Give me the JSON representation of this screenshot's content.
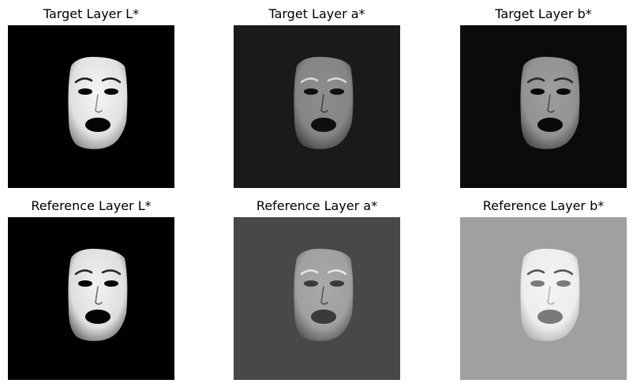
{
  "panels": [
    {
      "title": "Target Layer L*",
      "background": "#000000",
      "face": {
        "skin_light": "#f5f5f5",
        "skin_dark": "#8c8c8c",
        "feature": "#050505",
        "brow": "#1e1e1e"
      }
    },
    {
      "title": "Target Layer a*",
      "background": "#1a1a1a",
      "face": {
        "skin_light": "#8e8e8e",
        "skin_dark": "#454545",
        "feature": "#0f0f0f",
        "brow": "#d8d8d8"
      }
    },
    {
      "title": "Target Layer b*",
      "background": "#0b0b0b",
      "face": {
        "skin_light": "#9e9e9e",
        "skin_dark": "#4c4c4c",
        "feature": "#0a0a0a",
        "brow": "#2a2a2a"
      }
    },
    {
      "title": "Reference Layer L*",
      "background": "#000000",
      "face": {
        "skin_light": "#f2f2f2",
        "skin_dark": "#6e6e6e",
        "feature": "#030303",
        "brow": "#2a2a2a"
      }
    },
    {
      "title": "Reference Layer a*",
      "background": "#484848",
      "face": {
        "skin_light": "#a8a8a8",
        "skin_dark": "#5a5a5a",
        "feature": "#3a3a3a",
        "brow": "#e6e6e6"
      }
    },
    {
      "title": "Reference Layer b*",
      "background": "#a0a0a0",
      "face": {
        "skin_light": "#f4f4f4",
        "skin_dark": "#b4b4b4",
        "feature": "#7a7a7a",
        "brow": "#555555"
      }
    }
  ]
}
